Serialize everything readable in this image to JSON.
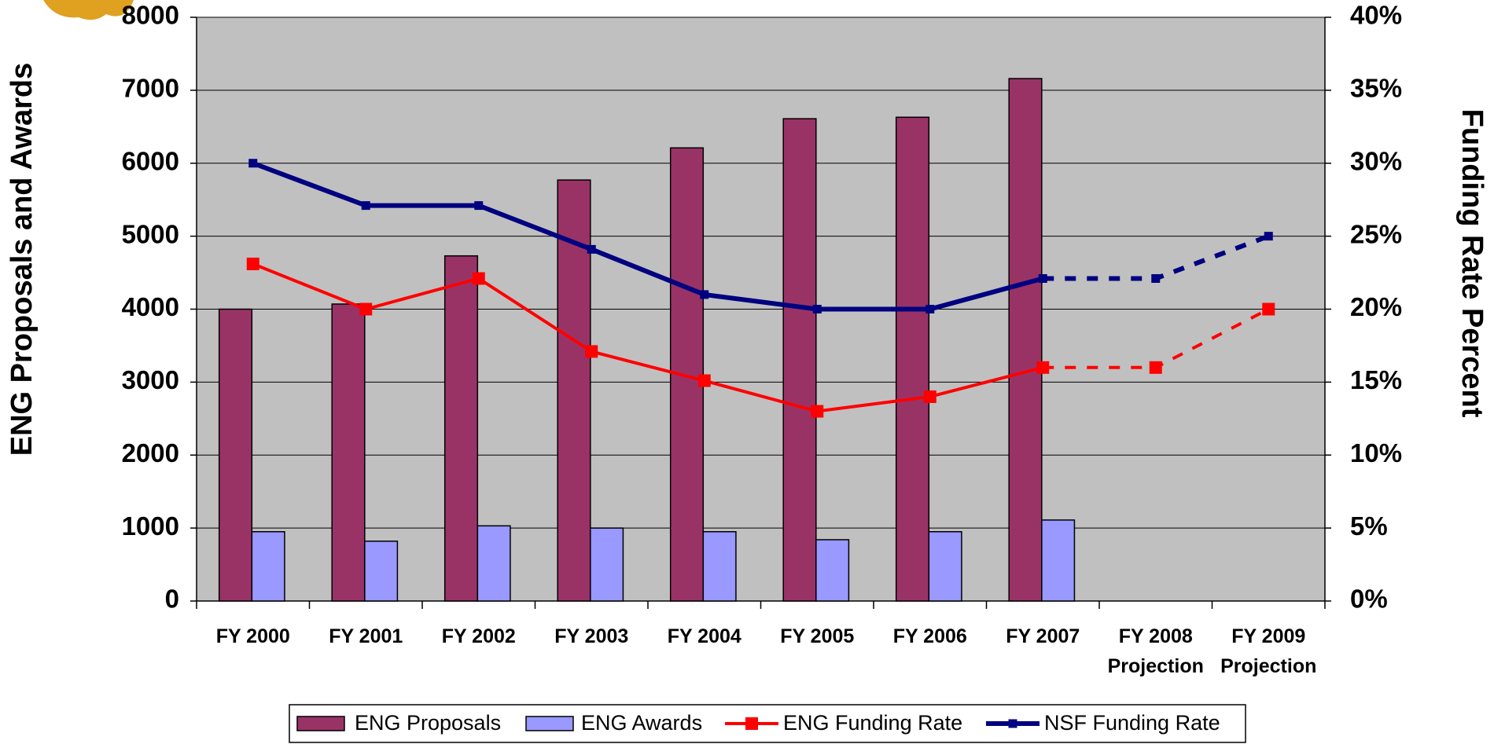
{
  "chart_data": {
    "type": "bar-line",
    "categories": [
      "FY 2000",
      "FY 2001",
      "FY 2002",
      "FY 2003",
      "FY 2004",
      "FY 2005",
      "FY 2006",
      "FY 2007",
      "FY 2008 Projection",
      "FY 2009 Projection"
    ],
    "series": [
      {
        "name": "ENG Proposals",
        "color": "#993366",
        "type": "bar",
        "values": [
          4000,
          4070,
          4730,
          5770,
          6210,
          6610,
          6630,
          7160,
          null,
          null
        ]
      },
      {
        "name": "ENG Awards",
        "color": "#9999ff",
        "type": "bar",
        "values": [
          950,
          820,
          1030,
          1000,
          950,
          840,
          950,
          1110,
          null,
          null
        ]
      },
      {
        "name": "ENG Funding Rate",
        "color": "#ff0000",
        "type": "line",
        "axis": "y2",
        "values": [
          23.1,
          20,
          22.1,
          17.1,
          15.1,
          13,
          14,
          16,
          16,
          20
        ]
      },
      {
        "name": "NSF Funding Rate",
        "color": "#000080",
        "type": "line",
        "axis": "y2",
        "values": [
          30,
          27.1,
          27.1,
          24.1,
          21,
          20,
          20,
          22.1,
          22.1,
          25
        ]
      }
    ],
    "dashed_from_category": 7,
    "ylabel": "ENG Proposals and Awards",
    "y2label": "Funding Rate Percent",
    "ylim": [
      0,
      8000
    ],
    "yticks": [
      0,
      1000,
      2000,
      3000,
      4000,
      5000,
      6000,
      7000,
      8000
    ],
    "y2lim": [
      0,
      40
    ],
    "y2ticks": [
      {
        "value": 0,
        "label": "0%"
      },
      {
        "value": 5,
        "label": "5%"
      },
      {
        "value": 10,
        "label": "10%"
      },
      {
        "value": 15,
        "label": "15%"
      },
      {
        "value": 20,
        "label": "20%"
      },
      {
        "value": 25,
        "label": "25%"
      },
      {
        "value": 30,
        "label": "30%"
      },
      {
        "value": 35,
        "label": "35%"
      },
      {
        "value": 40,
        "label": "40%"
      }
    ],
    "grid": true,
    "plot_background": "#c0c0c0",
    "legend": "bottom"
  }
}
